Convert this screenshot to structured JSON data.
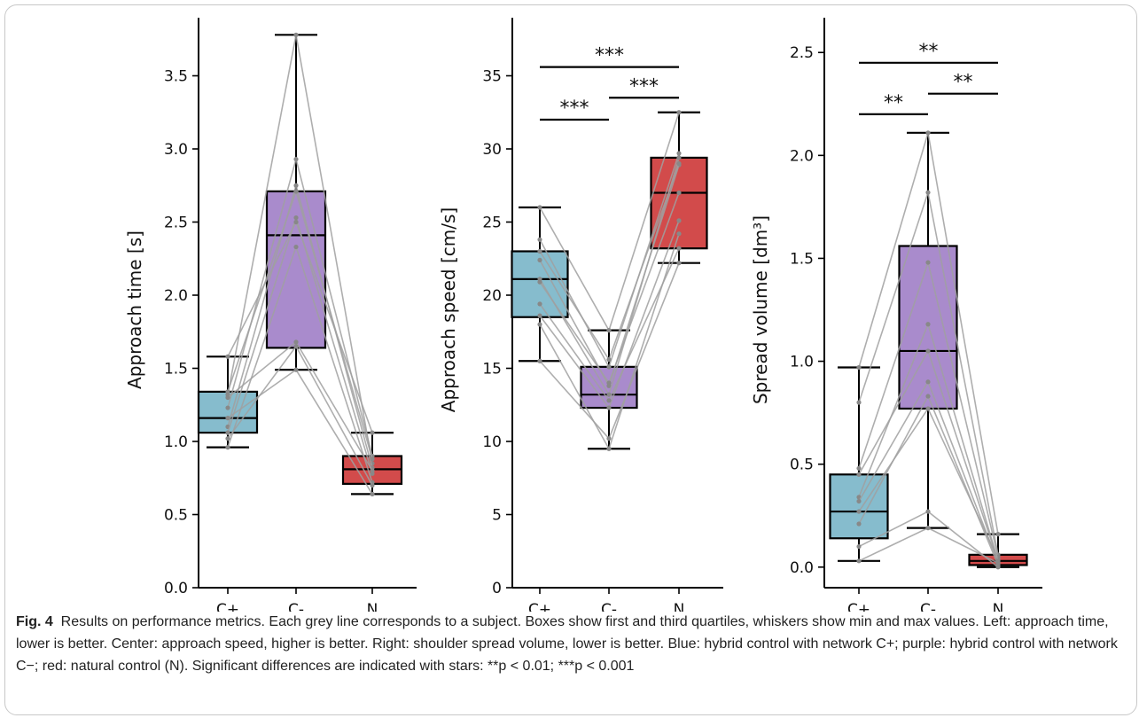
{
  "figure": {
    "label": "Fig. 4",
    "caption": "Results on performance metrics. Each grey line corresponds to a subject. Boxes show first and third quartiles, whiskers show min and max values. Left: approach time, lower is better. Center: approach speed, higher is better. Right: shoulder spread volume, lower is better. Blue: hybrid control with network C+; purple: hybrid control with network C−; red: natural control (N). Significant differences are indicated with stars: **p < 0.01; ***p < 0.001"
  },
  "colors": {
    "C+": "#86bccd",
    "C-": "#a98bcc",
    "N": "#d24b4b",
    "subject_line": "#a0a0a0"
  },
  "chart_data": [
    {
      "type": "box",
      "ylabel": "Approach time [s]",
      "categories": [
        "C+",
        "C-",
        "N"
      ],
      "ylim": [
        0,
        3.8
      ],
      "yticks": [
        "0.0",
        "0.5",
        "1.0",
        "1.5",
        "2.0",
        "2.5",
        "3.0",
        "3.5"
      ],
      "boxes": [
        {
          "category": "C+",
          "min": 0.96,
          "q1": 1.06,
          "median": 1.16,
          "q3": 1.34,
          "max": 1.58
        },
        {
          "category": "C-",
          "min": 1.49,
          "q1": 1.64,
          "median": 2.41,
          "q3": 2.71,
          "max": 3.78
        },
        {
          "category": "N",
          "min": 0.64,
          "q1": 0.71,
          "median": 0.81,
          "q3": 0.9,
          "max": 1.06
        }
      ],
      "subjects": [
        [
          1.32,
          3.78,
          0.85
        ],
        [
          1.23,
          2.93,
          0.9
        ],
        [
          1.1,
          2.75,
          0.82
        ],
        [
          1.06,
          2.53,
          0.78
        ],
        [
          1.58,
          2.5,
          1.06
        ],
        [
          0.96,
          2.33,
          0.72
        ],
        [
          1.3,
          1.68,
          0.8
        ],
        [
          1.16,
          1.49,
          0.64
        ],
        [
          1.02,
          1.65,
          0.7
        ],
        [
          1.34,
          2.71,
          0.88
        ]
      ],
      "significance": []
    },
    {
      "type": "box",
      "ylabel": "Approach speed [cm/s]",
      "categories": [
        "C+",
        "C-",
        "N"
      ],
      "ylim": [
        0,
        38
      ],
      "yticks": [
        "0",
        "5",
        "10",
        "15",
        "20",
        "25",
        "30",
        "35"
      ],
      "boxes": [
        {
          "category": "C+",
          "min": 15.5,
          "q1": 18.5,
          "median": 21.1,
          "q3": 23.0,
          "max": 26.0
        },
        {
          "category": "C-",
          "min": 9.5,
          "q1": 12.3,
          "median": 13.2,
          "q3": 15.1,
          "max": 17.6
        },
        {
          "category": "N",
          "min": 22.2,
          "q1": 23.2,
          "median": 27.0,
          "q3": 29.4,
          "max": 32.5
        }
      ],
      "subjects": [
        [
          26.0,
          17.6,
          32.5
        ],
        [
          23.8,
          15.1,
          29.7
        ],
        [
          22.4,
          13.8,
          28.9
        ],
        [
          21.1,
          13.2,
          29.4
        ],
        [
          18.6,
          12.3,
          25.1
        ],
        [
          18.0,
          9.5,
          24.2
        ],
        [
          15.5,
          10.2,
          22.2
        ],
        [
          20.9,
          14.0,
          27.0
        ],
        [
          19.4,
          12.8,
          23.2
        ],
        [
          23.0,
          15.6,
          29.0
        ]
      ],
      "significance": [
        {
          "from": 0,
          "to": 2,
          "y": 35.6,
          "stars": "***"
        },
        {
          "from": 1,
          "to": 2,
          "y": 33.5,
          "stars": "***"
        },
        {
          "from": 0,
          "to": 1,
          "y": 32.0,
          "stars": "***"
        }
      ]
    },
    {
      "type": "box",
      "ylabel": "Spread volume [dm³]",
      "categories": [
        "C+",
        "C-",
        "N"
      ],
      "ylim": [
        -0.1,
        2.6
      ],
      "yticks": [
        "0.0",
        "0.5",
        "1.0",
        "1.5",
        "2.0",
        "2.5"
      ],
      "boxes": [
        {
          "category": "C+",
          "min": 0.03,
          "q1": 0.14,
          "median": 0.27,
          "q3": 0.45,
          "max": 0.97
        },
        {
          "category": "C-",
          "min": 0.19,
          "q1": 0.77,
          "median": 1.05,
          "q3": 1.56,
          "max": 2.11
        },
        {
          "category": "N",
          "min": 0.0,
          "q1": 0.01,
          "median": 0.03,
          "q3": 0.06,
          "max": 0.16
        }
      ],
      "subjects": [
        [
          0.97,
          2.11,
          0.16
        ],
        [
          0.8,
          1.82,
          0.06
        ],
        [
          0.48,
          1.48,
          0.05
        ],
        [
          0.34,
          1.18,
          0.03
        ],
        [
          0.32,
          0.9,
          0.02
        ],
        [
          0.21,
          0.83,
          0.01
        ],
        [
          0.1,
          0.27,
          0.0
        ],
        [
          0.03,
          0.19,
          0.02
        ],
        [
          0.27,
          0.77,
          0.04
        ],
        [
          0.45,
          1.05,
          0.03
        ]
      ],
      "significance": [
        {
          "from": 0,
          "to": 2,
          "y": 2.45,
          "stars": "**"
        },
        {
          "from": 1,
          "to": 2,
          "y": 2.3,
          "stars": "**"
        },
        {
          "from": 0,
          "to": 1,
          "y": 2.2,
          "stars": "**"
        }
      ]
    }
  ]
}
